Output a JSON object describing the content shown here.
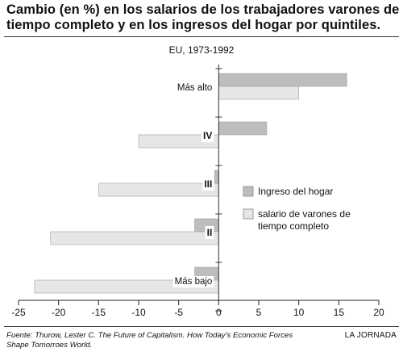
{
  "header": {
    "title_line1": "Cambio (en %) en los salarios de los trabajadores varones de",
    "title_line2": "tiempo completo y en los ingresos del hogar por quintiles.",
    "subtitle": "EU, 1973-1992"
  },
  "chart_data": {
    "type": "bar",
    "orientation": "horizontal",
    "categories": [
      "Más alto",
      "IV",
      "III",
      "II",
      "Más bajo"
    ],
    "series": [
      {
        "name": "Ingreso del hogar",
        "color": "#bdbdbd",
        "values": [
          16,
          6,
          -0.5,
          -3,
          -3
        ]
      },
      {
        "name": "salario de varones de tiempo completo",
        "color": "#e6e6e6",
        "values": [
          10,
          -10,
          -15,
          -21,
          -23
        ]
      }
    ],
    "xlim": [
      -25,
      20
    ],
    "x_ticks": [
      "-25",
      "-20",
      "-15",
      "-10",
      "-5",
      "0",
      "5",
      "10",
      "15",
      "20"
    ],
    "legend": {
      "position": "right",
      "entries": [
        {
          "label_lines": [
            "Ingreso del hogar"
          ],
          "color": "#bdbdbd"
        },
        {
          "label_lines": [
            "salario de varones de",
            "tiempo completo"
          ],
          "color": "#e6e6e6"
        }
      ]
    }
  },
  "footer": {
    "source_line1": "Fuente: Thurow, Lester C. The Future of Capitalism. How Today’s Economic Forces",
    "source_line2": "Shape Tomorroes World.",
    "credit": "LA JORNADA"
  }
}
